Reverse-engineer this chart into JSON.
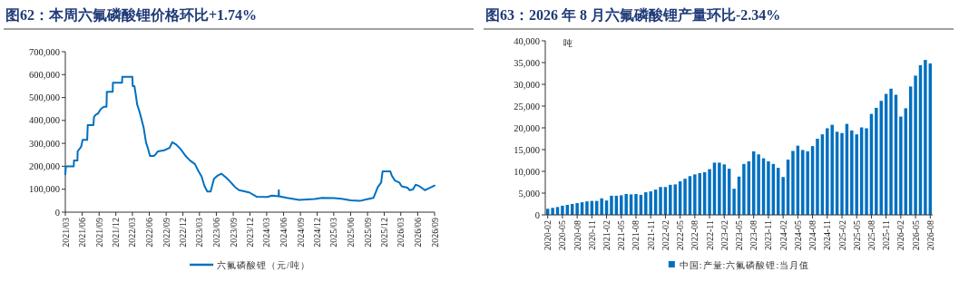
{
  "chart_data": [
    {
      "type": "line",
      "title": "图62：本周六氟磷酸锂价格环比+1.74%",
      "x": [
        "2021-03-01",
        "2021-03-04",
        "2021-04-16",
        "2021-04-17",
        "2021-05-06",
        "2021-05-07",
        "2021-05-26",
        "2021-06-03",
        "2021-06-28",
        "2021-07-01",
        "2021-08-01",
        "2021-08-04",
        "2021-08-13",
        "2021-08-26",
        "2021-09-10",
        "2021-09-27",
        "2021-10-11",
        "2021-10-13",
        "2021-11-14",
        "2021-11-15",
        "2022-01-04",
        "2022-01-05",
        "2022-03-01",
        "2022-03-03",
        "2022-03-12",
        "2022-03-19",
        "2022-03-27",
        "2022-04-10",
        "2022-05-01",
        "2022-05-14",
        "2022-05-24",
        "2022-06-05",
        "2022-06-26",
        "2022-07-03",
        "2022-07-18",
        "2022-08-21",
        "2022-09-19",
        "2022-10-04",
        "2022-10-25",
        "2022-11-19",
        "2022-12-16",
        "2023-01-09",
        "2023-02-04",
        "2023-02-23",
        "2023-03-13",
        "2023-03-28",
        "2023-04-13",
        "2023-05-01",
        "2023-05-19",
        "2023-06-09",
        "2023-06-28",
        "2023-07-25",
        "2023-08-19",
        "2023-09-10",
        "2023-10-03",
        "2023-11-27",
        "2024-01-08",
        "2024-03-05",
        "2024-03-29",
        "2024-05-05",
        "2024-05-06",
        "2024-05-07",
        "2024-06-20",
        "2024-08-25",
        "2024-11-17",
        "2024-12-27",
        "2025-03-03",
        "2025-04-12",
        "2025-06-02",
        "2025-07-21",
        "2025-08-24",
        "2025-10-03",
        "2025-10-27",
        "2025-11-14",
        "2025-11-22",
        "2026-01-03",
        "2026-01-12",
        "2026-01-28",
        "2026-02-21",
        "2026-03-06",
        "2026-04-06",
        "2026-04-18",
        "2026-05-06",
        "2026-05-21",
        "2026-06-13",
        "2026-07-10",
        "2026-08-04",
        "2026-09-01"
      ],
      "series": [
        {
          "name": "六氟磷酸锂（元/吨）",
          "color": "#0070c0",
          "values": [
            165000,
            200000,
            200000,
            225000,
            225000,
            265000,
            285000,
            315000,
            315000,
            380000,
            380000,
            415000,
            425000,
            430000,
            450000,
            460000,
            460000,
            525000,
            525000,
            565000,
            565000,
            590000,
            590000,
            550000,
            550000,
            515000,
            470000,
            435000,
            370000,
            305000,
            280000,
            245000,
            245000,
            250000,
            265000,
            270000,
            280000,
            305000,
            295000,
            275000,
            245000,
            225000,
            210000,
            180000,
            155000,
            115000,
            90000,
            90000,
            145000,
            160000,
            168000,
            150000,
            130000,
            110000,
            96000,
            86000,
            67000,
            66000,
            72000,
            69000,
            96000,
            69000,
            62000,
            53000,
            57000,
            62000,
            61000,
            58000,
            51000,
            49000,
            55000,
            62000,
            109000,
            129000,
            178000,
            178000,
            158000,
            138000,
            129000,
            113000,
            107000,
            96000,
            99000,
            120000,
            112000,
            96000,
            105000,
            116000
          ]
        }
      ],
      "xlim": [
        "2021-03",
        "2026-09"
      ],
      "xticks": [
        {
          "value": "2021-03",
          "label": "2021/03"
        },
        {
          "value": "2021-06",
          "label": "2021/06"
        },
        {
          "value": "2021-09",
          "label": "2021/09"
        },
        {
          "value": "2021-12",
          "label": "2021/12"
        },
        {
          "value": "2022-03",
          "label": "2022/03"
        },
        {
          "value": "2022-06",
          "label": "2022/06"
        },
        {
          "value": "2022-09",
          "label": "2022/09"
        },
        {
          "value": "2022-12",
          "label": "2022/12"
        },
        {
          "value": "2023-03",
          "label": "2023/03"
        },
        {
          "value": "2023-06",
          "label": "2023/06"
        },
        {
          "value": "2023-09",
          "label": "2023/09"
        },
        {
          "value": "2023-12",
          "label": "2023/12"
        },
        {
          "value": "2024-03",
          "label": "2024/03"
        },
        {
          "value": "2024-06",
          "label": "2024/06"
        },
        {
          "value": "2024-09",
          "label": "2024/09"
        },
        {
          "value": "2024-12",
          "label": "2024/12"
        },
        {
          "value": "2025-03",
          "label": "2025/03"
        },
        {
          "value": "2025-06",
          "label": "2025/06"
        },
        {
          "value": "2025-09",
          "label": "2025/09"
        },
        {
          "value": "2025-12",
          "label": "2025/12"
        },
        {
          "value": "2026-03",
          "label": "2026/03"
        },
        {
          "value": "2026-06",
          "label": "2026/06"
        },
        {
          "value": "2026-09",
          "label": "2026/09"
        }
      ],
      "ylim": [
        0,
        700000
      ],
      "yticks": [
        0,
        {
          "value": 100000,
          "label": "100,000"
        },
        {
          "value": 200000,
          "label": "200,000"
        },
        {
          "value": 300000,
          "label": "300,000"
        },
        {
          "value": 400000,
          "label": "400,000"
        },
        {
          "value": 500000,
          "label": "500,000"
        },
        {
          "value": 600000,
          "label": "600,000"
        },
        {
          "value": 700000,
          "label": "700,000"
        }
      ],
      "legend": "bottom"
    },
    {
      "type": "bar",
      "title": "图63：2026 年 8 月六氟磷酸锂产量环比-2.34%",
      "ylabel": "吨",
      "categories": [
        "2020-02",
        null,
        null,
        "2020-05",
        null,
        null,
        "2020-08",
        null,
        null,
        "2020-11",
        null,
        null,
        "2021-02",
        null,
        null,
        "2021-05",
        null,
        null,
        "2021-08",
        null,
        null,
        "2021-11",
        null,
        null,
        "2022-02",
        null,
        null,
        "2022-05",
        null,
        null,
        "2022-08",
        null,
        null,
        "2022-11",
        null,
        null,
        "2023-02",
        null,
        null,
        "2023-05",
        null,
        null,
        "2023-08",
        null,
        null,
        "2023-11",
        null,
        null,
        "2024-02",
        null,
        null,
        "2024-05",
        null,
        null,
        "2024-08",
        null,
        null,
        "2024-11",
        null,
        null,
        "2025-02",
        null,
        null,
        "2025-05",
        null,
        null,
        "2025-08",
        null,
        null,
        "2025-11",
        null,
        null,
        "2026-02",
        null,
        null,
        "2026-05",
        null,
        null,
        "2026-08"
      ],
      "series": [
        {
          "name": "中国:产量:六氟磷酸锂:当月值",
          "color": "#0070c0",
          "values": [
            1400,
            1600,
            1800,
            2100,
            2300,
            2500,
            2700,
            2900,
            3100,
            3200,
            3200,
            3800,
            3300,
            4400,
            4400,
            4500,
            4800,
            4700,
            4800,
            4600,
            5200,
            5400,
            5800,
            6400,
            6400,
            6900,
            7000,
            7700,
            8300,
            8900,
            9300,
            9600,
            9800,
            10500,
            12000,
            12000,
            11600,
            10600,
            6000,
            8800,
            11700,
            12300,
            14600,
            13900,
            13000,
            12300,
            11700,
            10800,
            8700,
            12700,
            14700,
            15900,
            14900,
            14600,
            15800,
            17500,
            18500,
            19900,
            20700,
            19100,
            18800,
            20900,
            19400,
            18500,
            20100,
            19900,
            23200,
            24600,
            26200,
            27800,
            29000,
            27600,
            22600,
            24500,
            29500,
            32000,
            34400,
            35600,
            34800
          ]
        }
      ],
      "ylim": [
        0,
        40000
      ],
      "yticks": [
        0,
        {
          "value": 5000,
          "label": "5,000"
        },
        {
          "value": 10000,
          "label": "10,000"
        },
        {
          "value": 15000,
          "label": "15,000"
        },
        {
          "value": 20000,
          "label": "20,000"
        },
        {
          "value": 25000,
          "label": "25,000"
        },
        {
          "value": 30000,
          "label": "30,000"
        },
        {
          "value": 35000,
          "label": "35,000"
        },
        {
          "value": 40000,
          "label": "40,000"
        }
      ],
      "legend": "bottom"
    }
  ]
}
